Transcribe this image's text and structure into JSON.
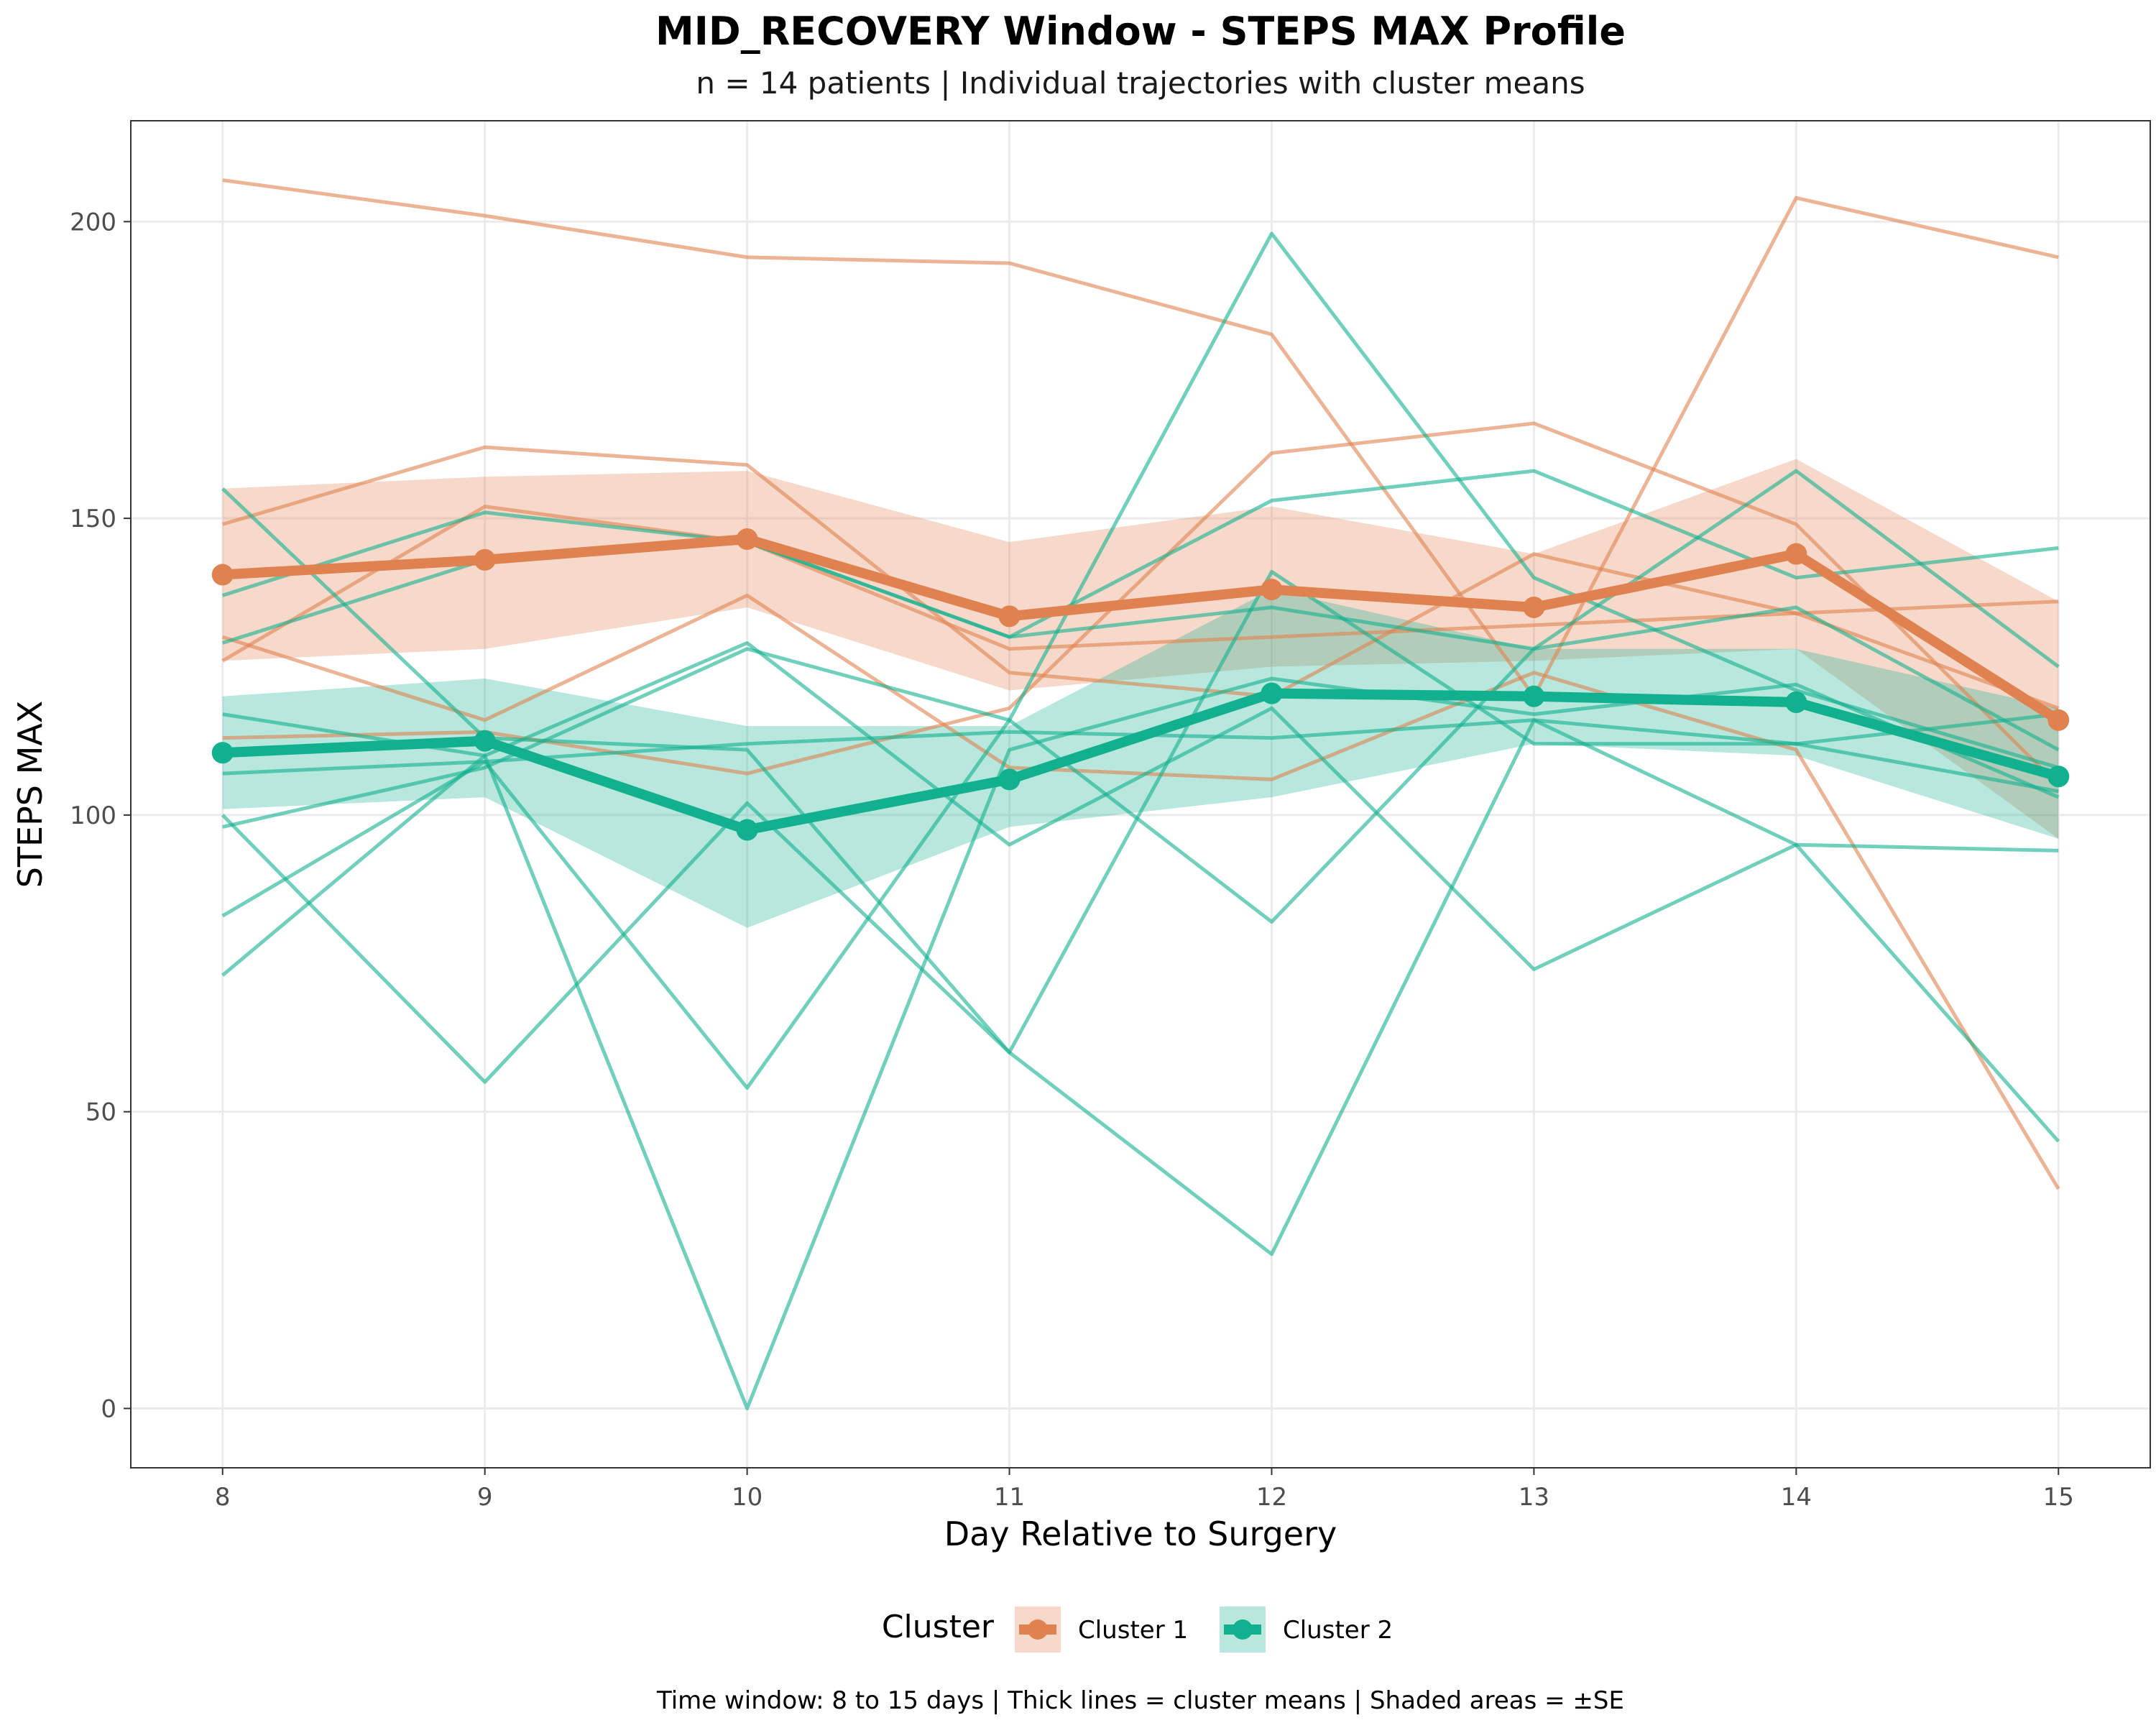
{
  "chart_data": {
    "type": "line",
    "title": "MID_RECOVERY Window - STEPS MAX Profile",
    "subtitle": "n = 14 patients | Individual trajectories with cluster means",
    "xlabel": "Day Relative to Surgery",
    "ylabel": "STEPS MAX",
    "caption": "Time window: 8 to 15 days | Thick lines = cluster means | Shaded areas = ±SE",
    "x": [
      8,
      9,
      10,
      11,
      12,
      13,
      14,
      15
    ],
    "xlim": [
      7.65,
      15.35
    ],
    "ylim": [
      -10,
      217
    ],
    "xticks": [
      8,
      9,
      10,
      11,
      12,
      13,
      14,
      15
    ],
    "yticks": [
      0,
      50,
      100,
      150,
      200
    ],
    "grid": true,
    "legend": {
      "title": "Cluster",
      "position": "bottom",
      "entries": [
        "Cluster 1",
        "Cluster 2"
      ]
    },
    "colors": {
      "cluster1": "#e0824f",
      "cluster2": "#11b08e"
    },
    "clusters": [
      {
        "name": "Cluster 1",
        "color": "#e0824f",
        "mean": [
          140.5,
          143,
          146.5,
          133.5,
          138,
          135,
          144,
          116
        ],
        "se_lower": [
          126,
          128,
          135,
          121,
          125,
          126,
          128,
          96
        ],
        "se_upper": [
          155,
          157,
          158,
          146,
          152,
          144,
          160,
          136
        ],
        "patients": [
          [
            207,
            201,
            194,
            193,
            181,
            120,
            204,
            194
          ],
          [
            149,
            162,
            159,
            124,
            120,
            144,
            134,
            118
          ],
          [
            126,
            152,
            146,
            128,
            130,
            132,
            134,
            136
          ],
          [
            130,
            116,
            137,
            108,
            106,
            124,
            111,
            37
          ],
          [
            113,
            114,
            107,
            118,
            161,
            166,
            149,
            105
          ]
        ]
      },
      {
        "name": "Cluster 2",
        "color": "#11b08e",
        "mean": [
          110.5,
          112.5,
          97.5,
          106,
          120.5,
          120,
          119,
          106.5
        ],
        "se_lower": [
          101,
          103,
          81,
          98,
          103,
          112,
          110,
          96
        ],
        "se_upper": [
          120,
          123,
          115,
          115,
          138,
          128,
          128,
          118
        ],
        "patients": [
          [
            155,
            113,
            111,
            60,
            26,
            116,
            95,
            45
          ],
          [
            137,
            151,
            146,
            130,
            153,
            158,
            140,
            145
          ],
          [
            129,
            143,
            146,
            130,
            135,
            128,
            135,
            111
          ],
          [
            117,
            110,
            0,
            111,
            123,
            117,
            122,
            103
          ],
          [
            107,
            109,
            112,
            114,
            113,
            116,
            112,
            117
          ],
          [
            100,
            55,
            102,
            60,
            141,
            112,
            112,
            104
          ],
          [
            98,
            108,
            128,
            116,
            82,
            128,
            158,
            125
          ],
          [
            83,
            109,
            54,
            116,
            198,
            140,
            121,
            108
          ],
          [
            73,
            110,
            129,
            95,
            118,
            74,
            95,
            94
          ]
        ]
      }
    ]
  }
}
